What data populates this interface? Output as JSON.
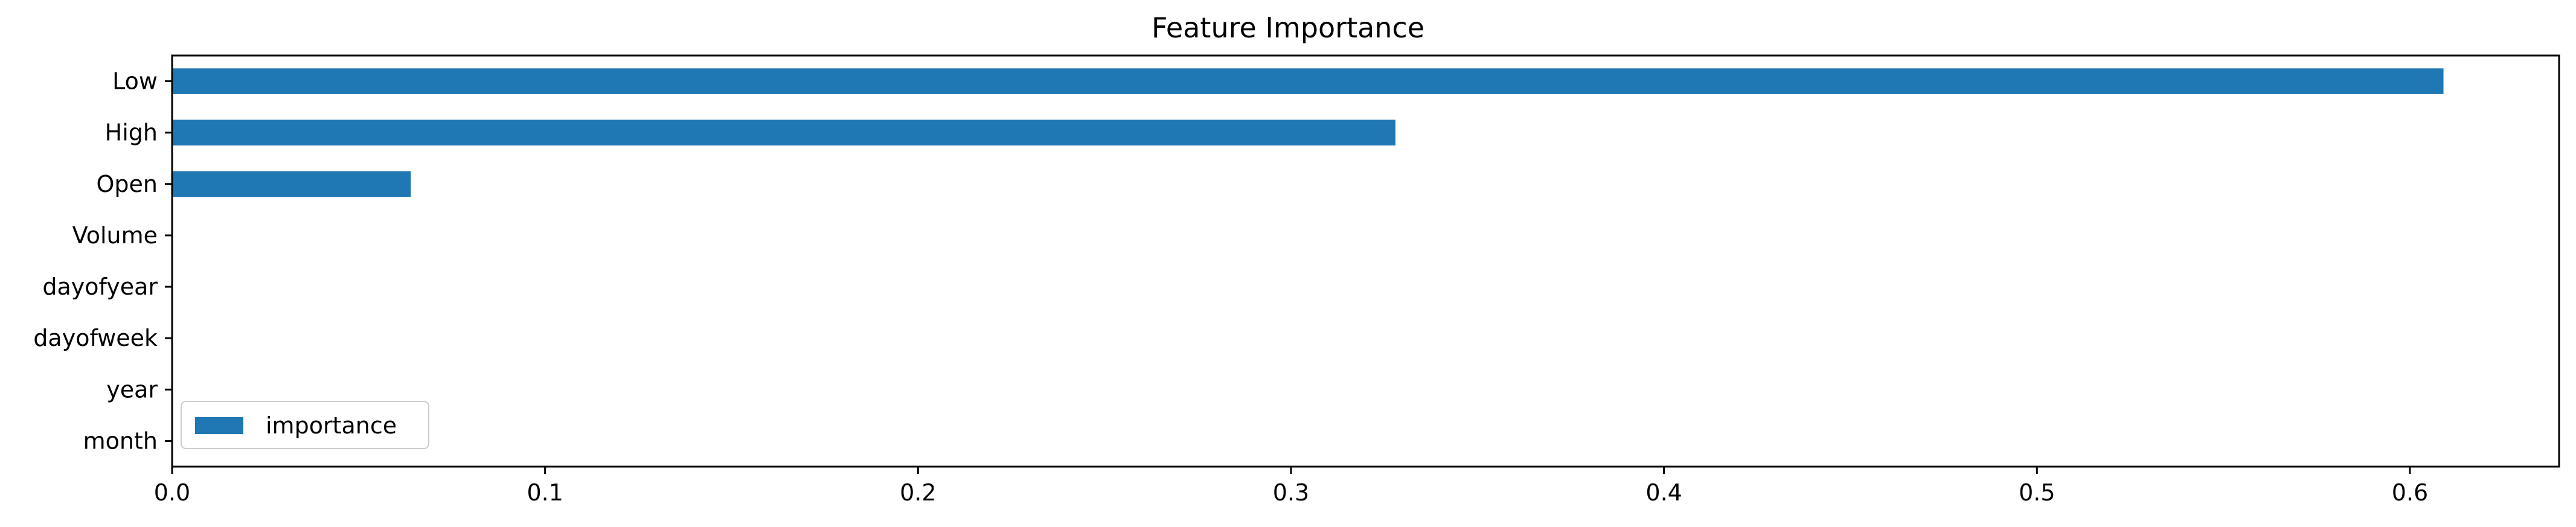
{
  "chart_data": {
    "type": "bar",
    "orientation": "horizontal",
    "title": "Feature Importance",
    "xlabel": "",
    "ylabel": "",
    "categories": [
      "Low",
      "High",
      "Open",
      "Volume",
      "dayofyear",
      "dayofweek",
      "year",
      "month"
    ],
    "series": [
      {
        "name": "importance",
        "values": [
          0.609,
          0.328,
          0.064,
          0.0,
          0.0,
          0.0,
          0.0,
          0.0
        ],
        "color": "#1f77b4"
      }
    ],
    "xlim": [
      0,
      0.64
    ],
    "xticks": [
      0.0,
      0.1,
      0.2,
      0.3,
      0.4,
      0.5,
      0.6
    ],
    "xtick_labels": [
      "0.0",
      "0.1",
      "0.2",
      "0.3",
      "0.4",
      "0.5",
      "0.6"
    ],
    "grid": false,
    "legend": {
      "position": "lower-left",
      "entries": [
        "importance"
      ]
    }
  }
}
